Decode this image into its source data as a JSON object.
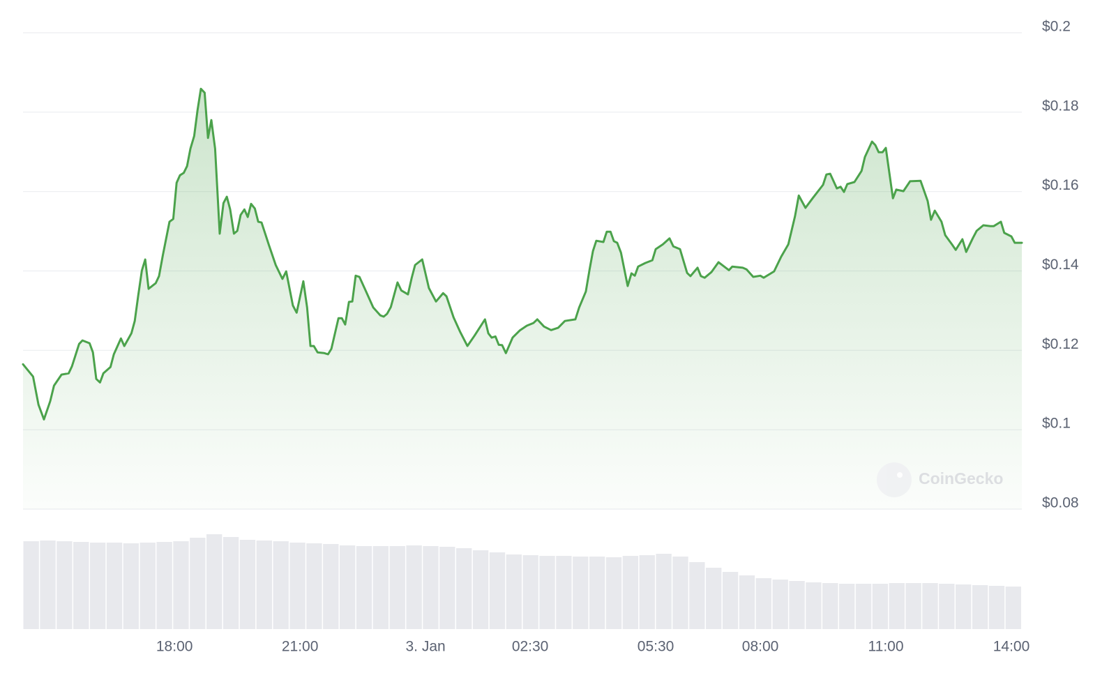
{
  "chart_data": {
    "type": "line",
    "watermark": "CoinGecko",
    "color": "#4ba24b",
    "x": [
      14.38,
      14.62,
      14.75,
      14.88,
      15.03,
      15.12,
      15.3,
      15.47,
      15.55,
      15.72,
      15.8,
      15.97,
      16.05,
      16.13,
      16.22,
      16.3,
      16.47,
      16.55,
      16.72,
      16.8,
      16.97,
      17.05,
      17.13,
      17.22,
      17.3,
      17.38,
      17.55,
      17.63,
      17.72,
      17.88,
      17.97,
      18.05,
      18.13,
      18.22,
      18.3,
      18.38,
      18.47,
      18.55,
      18.63,
      18.72,
      18.8,
      18.88,
      18.97,
      19.08,
      19.17,
      19.25,
      19.33,
      19.42,
      19.5,
      19.58,
      19.67,
      19.75,
      19.83,
      19.92,
      20.0,
      20.08,
      20.25,
      20.42,
      20.58,
      20.67,
      20.83,
      20.92,
      21.08,
      21.17,
      21.25,
      21.33,
      21.42,
      21.58,
      21.67,
      21.75,
      21.92,
      22.0,
      22.08,
      22.17,
      22.25,
      22.33,
      22.42,
      22.58,
      22.75,
      22.92,
      23.0,
      23.08,
      23.17,
      23.33,
      23.42,
      23.58,
      23.67,
      23.75,
      23.92,
      24.08,
      24.25,
      24.42,
      24.5,
      24.67,
      24.83,
      25.0,
      25.17,
      25.42,
      25.5,
      25.58,
      25.67,
      25.75,
      25.83,
      25.92,
      26.08,
      26.25,
      26.42,
      26.58,
      26.67,
      26.83,
      27.0,
      27.17,
      27.33,
      27.58,
      27.67,
      27.83,
      27.92,
      28.0,
      28.08,
      28.25,
      28.33,
      28.42,
      28.5,
      28.58,
      28.67,
      28.83,
      28.92,
      29.0,
      29.08,
      29.25,
      29.42,
      29.5,
      29.67,
      29.83,
      29.92,
      30.08,
      30.25,
      30.33,
      30.5,
      30.58,
      30.67,
      30.83,
      31.0,
      31.25,
      31.33,
      31.58,
      31.67,
      31.83,
      32.0,
      32.08,
      32.33,
      32.5,
      32.67,
      32.83,
      32.92,
      33.08,
      33.25,
      33.5,
      33.58,
      33.67,
      33.83,
      33.92,
      34.0,
      34.08,
      34.25,
      34.42,
      34.5,
      34.67,
      34.75,
      34.83,
      34.92,
      35.0,
      35.17,
      35.25,
      35.42,
      35.58,
      35.83,
      36.0,
      36.08,
      36.17,
      36.33,
      36.42,
      36.58,
      36.67,
      36.83,
      36.92,
      37.08,
      37.17,
      37.33,
      37.5,
      37.58,
      37.75,
      37.83,
      38.0,
      38.08,
      38.25
    ],
    "values": [
      0.1165,
      0.1134,
      0.1063,
      0.1026,
      0.1072,
      0.1111,
      0.1139,
      0.1142,
      0.116,
      0.1216,
      0.1225,
      0.1218,
      0.1195,
      0.1128,
      0.1119,
      0.1142,
      0.1158,
      0.119,
      0.123,
      0.1211,
      0.1243,
      0.1274,
      0.1336,
      0.1401,
      0.1429,
      0.1355,
      0.1369,
      0.1387,
      0.1439,
      0.1524,
      0.1531,
      0.1622,
      0.1641,
      0.1647,
      0.1664,
      0.1708,
      0.174,
      0.1805,
      0.1859,
      0.1849,
      0.1735,
      0.178,
      0.1708,
      0.1494,
      0.1571,
      0.1587,
      0.1555,
      0.1494,
      0.1501,
      0.1541,
      0.1555,
      0.1536,
      0.1569,
      0.1557,
      0.1524,
      0.1522,
      0.1467,
      0.1415,
      0.138,
      0.1399,
      0.1313,
      0.1295,
      0.1374,
      0.1308,
      0.1211,
      0.1211,
      0.1195,
      0.1193,
      0.119,
      0.1204,
      0.1281,
      0.1281,
      0.1265,
      0.1322,
      0.1323,
      0.1388,
      0.1385,
      0.1348,
      0.1308,
      0.1288,
      0.1285,
      0.1292,
      0.1309,
      0.1371,
      0.1351,
      0.1341,
      0.1383,
      0.1415,
      0.1429,
      0.1357,
      0.1323,
      0.1344,
      0.1336,
      0.1283,
      0.1246,
      0.1211,
      0.1237,
      0.1278,
      0.1243,
      0.1232,
      0.1235,
      0.1214,
      0.1213,
      0.1193,
      0.1232,
      0.125,
      0.1262,
      0.1269,
      0.1278,
      0.126,
      0.1251,
      0.1257,
      0.1274,
      0.1278,
      0.1308,
      0.1348,
      0.1404,
      0.145,
      0.1476,
      0.1473,
      0.1499,
      0.1499,
      0.1475,
      0.1471,
      0.1446,
      0.1362,
      0.1394,
      0.1388,
      0.1411,
      0.142,
      0.1427,
      0.1455,
      0.1467,
      0.1482,
      0.1462,
      0.1455,
      0.1395,
      0.1387,
      0.1408,
      0.1387,
      0.1383,
      0.1397,
      0.1422,
      0.1402,
      0.1411,
      0.1408,
      0.1404,
      0.1385,
      0.1388,
      0.1383,
      0.1399,
      0.1436,
      0.1467,
      0.1538,
      0.159,
      0.1559,
      0.1583,
      0.1617,
      0.1643,
      0.1645,
      0.1608,
      0.1612,
      0.1599,
      0.1619,
      0.1624,
      0.1652,
      0.1687,
      0.1726,
      0.1717,
      0.1699,
      0.1699,
      0.171,
      0.1583,
      0.1605,
      0.1601,
      0.1626,
      0.1627,
      0.1576,
      0.1529,
      0.1552,
      0.1524,
      0.149,
      0.1467,
      0.1453,
      0.148,
      0.1448,
      0.1483,
      0.1501,
      0.1515,
      0.1513,
      0.1513,
      0.1524,
      0.1496,
      0.1487,
      0.1471,
      0.1471
    ],
    "xlim": [
      14.38,
      38.25
    ],
    "ylim": [
      0.08,
      0.2
    ],
    "yticks": [
      {
        "value": 0.2,
        "label": "$0.2"
      },
      {
        "value": 0.18,
        "label": "$0.18"
      },
      {
        "value": 0.16,
        "label": "$0.16"
      },
      {
        "value": 0.14,
        "label": "$0.14"
      },
      {
        "value": 0.12,
        "label": "$0.12"
      },
      {
        "value": 0.1,
        "label": "$0.1"
      },
      {
        "value": 0.08,
        "label": "$0.08"
      }
    ],
    "xticks": [
      {
        "value": 18,
        "label": "18:00"
      },
      {
        "value": 21,
        "label": "21:00"
      },
      {
        "value": 24,
        "label": "3. Jan"
      },
      {
        "value": 26.5,
        "label": "02:30"
      },
      {
        "value": 29.5,
        "label": "05:30"
      },
      {
        "value": 32,
        "label": "08:00"
      },
      {
        "value": 35,
        "label": "11:00"
      },
      {
        "value": 38,
        "label": "14:00"
      }
    ],
    "grid": true,
    "volume": {
      "color": "#e8e9ed",
      "y2lim": [
        0,
        170
      ],
      "values": [
        126,
        127,
        126,
        125,
        124,
        124,
        123,
        124,
        125,
        126,
        131,
        136,
        132,
        128,
        127,
        126,
        124,
        123,
        122,
        120,
        119,
        119,
        119,
        120,
        119,
        118,
        116,
        113,
        110,
        107,
        106,
        105,
        105,
        104,
        104,
        103,
        105,
        106,
        108,
        104,
        96,
        88,
        82,
        77,
        73,
        71,
        69,
        67,
        66,
        65,
        65,
        65,
        66,
        66,
        66,
        65,
        64,
        63,
        62,
        61
      ]
    }
  }
}
